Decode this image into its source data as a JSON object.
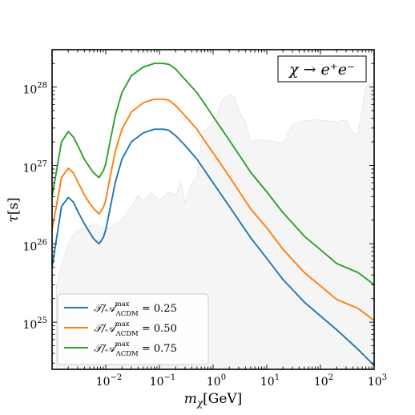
{
  "chart_data": {
    "type": "line",
    "title": "χ → e⁺e⁻",
    "xlabel": "m_χ[GeV]",
    "ylabel": "τ[s]",
    "xscale": "log",
    "yscale": "log",
    "xlim": [
      0.001,
      1000
    ],
    "ylim": [
      2.5e+24,
      3e+28
    ],
    "legend_position": "lower-left",
    "grid": false,
    "x_ticks": [
      {
        "base": "10",
        "exp": "−2",
        "value": 0.01
      },
      {
        "base": "10",
        "exp": "−1",
        "value": 0.1
      },
      {
        "base": "10",
        "exp": "0",
        "value": 1
      },
      {
        "base": "10",
        "exp": "1",
        "value": 10
      },
      {
        "base": "10",
        "exp": "2",
        "value": 100
      },
      {
        "base": "10",
        "exp": "3",
        "value": 1000
      }
    ],
    "y_ticks": [
      {
        "base": "10",
        "exp": "25",
        "value": 1e+25
      },
      {
        "base": "10",
        "exp": "26",
        "value": 1e+26
      },
      {
        "base": "10",
        "exp": "27",
        "value": 1e+27
      },
      {
        "base": "10",
        "exp": "28",
        "value": 1e+28
      }
    ],
    "series": [
      {
        "name": "T/A_ΛCDM^max = 0.25",
        "label_main": "𝒯/𝒜",
        "label_sup": "max",
        "label_sub": "ΛCDM",
        "label_value": " = 0.25",
        "color": "#1f77b4",
        "x": [
          0.001,
          0.0015,
          0.002,
          0.0025,
          0.003,
          0.004,
          0.005,
          0.006,
          0.0075,
          0.009,
          0.01,
          0.012,
          0.015,
          0.02,
          0.03,
          0.05,
          0.08,
          0.12,
          0.15,
          0.2,
          0.3,
          0.5,
          0.8,
          1,
          2,
          5,
          10,
          20,
          50,
          100,
          200,
          500,
          1000
        ],
        "y": [
          5e+25,
          3e+26,
          3.9e+26,
          3.4e+26,
          2.6e+26,
          1.8e+26,
          1.4e+26,
          1.15e+26,
          1e+26,
          1.2e+26,
          1.5e+26,
          2.8e+26,
          6e+26,
          1.2e+27,
          2e+27,
          2.6e+27,
          2.9e+27,
          2.9e+27,
          2.8e+27,
          2.4e+27,
          1.8e+27,
          1.2e+27,
          7.5e+26,
          6e+26,
          3e+26,
          1.2e+26,
          6.5e+25,
          3.5e+25,
          1.8e+25,
          1.2e+25,
          8e+24,
          4.5e+24,
          2.8e+24
        ]
      },
      {
        "name": "T/A_ΛCDM^max = 0.50",
        "label_main": "𝒯/𝒜",
        "label_sup": "max",
        "label_sub": "ΛCDM",
        "label_value": " = 0.50",
        "color": "#ff7f0e",
        "x": [
          0.001,
          0.0015,
          0.002,
          0.0025,
          0.003,
          0.004,
          0.005,
          0.006,
          0.0075,
          0.009,
          0.01,
          0.012,
          0.015,
          0.02,
          0.03,
          0.05,
          0.08,
          0.12,
          0.15,
          0.2,
          0.3,
          0.5,
          0.8,
          1,
          2,
          5,
          10,
          20,
          50,
          100,
          200,
          500,
          1000
        ],
        "y": [
          1.5e+26,
          7e+26,
          9.2e+26,
          8e+26,
          6.2e+26,
          4.2e+26,
          3.3e+26,
          2.8e+26,
          2.4e+26,
          2.9e+26,
          3.6e+26,
          7e+26,
          1.5e+27,
          2.9e+27,
          4.8e+27,
          6.3e+27,
          7e+27,
          7e+27,
          6.8e+27,
          5.8e+27,
          4.3e+27,
          2.9e+27,
          1.8e+27,
          1.45e+27,
          7.2e+26,
          2.8e+26,
          1.6e+26,
          8.5e+25,
          4.3e+25,
          2.9e+25,
          1.95e+25,
          1.5e+25,
          1.05e+25
        ]
      },
      {
        "name": "T/A_ΛCDM^max = 0.75",
        "label_main": "𝒯/𝒜",
        "label_sup": "max",
        "label_sub": "ΛCDM",
        "label_value": " = 0.75",
        "color": "#2ca02c",
        "x": [
          0.001,
          0.0015,
          0.002,
          0.0025,
          0.003,
          0.004,
          0.005,
          0.006,
          0.0075,
          0.009,
          0.01,
          0.012,
          0.015,
          0.02,
          0.03,
          0.05,
          0.08,
          0.12,
          0.15,
          0.2,
          0.3,
          0.5,
          0.8,
          1,
          2,
          5,
          10,
          20,
          50,
          100,
          200,
          500,
          1000
        ],
        "y": [
          4e+26,
          2e+27,
          2.7e+27,
          2.3e+27,
          1.8e+27,
          1.2e+27,
          9.5e+26,
          8e+26,
          7e+26,
          8.5e+26,
          1.05e+27,
          2e+27,
          4.3e+27,
          8.5e+27,
          1.4e+28,
          1.8e+28,
          2e+28,
          2e+28,
          1.95e+28,
          1.7e+28,
          1.25e+28,
          8.5e+27,
          5.3e+27,
          4.2e+27,
          2.1e+27,
          8.2e+26,
          4.6e+26,
          2.5e+26,
          1.25e+26,
          8.4e+25,
          5.6e+25,
          4.3e+25,
          3e+25
        ]
      }
    ],
    "shaded_region": {
      "color": "#e8e8e8",
      "x": [
        0.0012,
        0.0016,
        0.002,
        0.0025,
        0.003,
        0.004,
        0.005,
        0.007,
        0.009,
        0.012,
        0.015,
        0.02,
        0.03,
        0.04,
        0.05,
        0.07,
        0.1,
        0.15,
        0.2,
        0.25,
        0.3,
        0.4,
        0.5,
        0.6,
        0.7,
        0.9,
        1.2,
        1.5,
        2,
        2.5,
        3,
        4,
        5,
        6,
        10,
        15,
        20,
        30,
        50,
        70,
        100,
        200,
        300,
        400,
        500,
        700,
        1000
      ],
      "y": [
        3e+25,
        6e+25,
        1e+26,
        1.3e+26,
        1.5e+26,
        1.6e+26,
        1.7e+26,
        1.75e+26,
        1.6e+26,
        1.55e+26,
        1.8e+26,
        2e+26,
        3e+26,
        4.2e+26,
        3.5e+26,
        4.5e+26,
        3.6e+26,
        4.5e+26,
        4.2e+26,
        6e+26,
        3.4e+26,
        6e+26,
        7e+26,
        2e+27,
        2.8e+27,
        3.2e+27,
        4.5e+27,
        7e+27,
        8e+27,
        7.5e+27,
        5e+27,
        3.5e+27,
        2e+27,
        2.1e+27,
        2.1e+27,
        2e+27,
        1.9e+27,
        3.3e+27,
        3.7e+27,
        3.8e+27,
        3.8e+27,
        3.6e+27,
        3.8e+27,
        2.6e+27,
        2.5e+27,
        1e+28,
        1.2e+28
      ]
    }
  }
}
